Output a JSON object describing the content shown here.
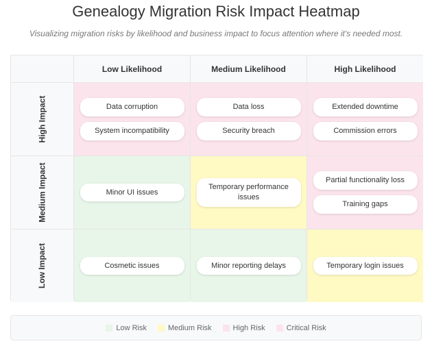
{
  "title": "Genealogy Migration Risk Impact Heatmap",
  "subtitle": "Visualizing migration risks by likelihood and business impact to focus attention where it's needed most.",
  "columns": [
    "Low Likelihood",
    "Medium Likelihood",
    "High Likelihood"
  ],
  "rows": [
    {
      "label": "High Impact",
      "cells": [
        {
          "level": "high",
          "items": [
            "Data corruption",
            "System incompatibility"
          ]
        },
        {
          "level": "high",
          "items": [
            "Data loss",
            "Security breach"
          ]
        },
        {
          "level": "high",
          "items": [
            "Extended downtime",
            "Commission errors"
          ]
        }
      ]
    },
    {
      "label": "Medium Impact",
      "cells": [
        {
          "level": "low",
          "items": [
            "Minor UI issues"
          ]
        },
        {
          "level": "medium",
          "items": [
            "Temporary performance issues"
          ]
        },
        {
          "level": "high",
          "items": [
            "Partial functionality loss",
            "Training gaps"
          ]
        }
      ]
    },
    {
      "label": "Low Impact",
      "cells": [
        {
          "level": "low",
          "items": [
            "Cosmetic issues"
          ]
        },
        {
          "level": "low",
          "items": [
            "Minor reporting delays"
          ]
        },
        {
          "level": "medium",
          "items": [
            "Temporary login issues"
          ]
        }
      ]
    }
  ],
  "legend": [
    {
      "label": "Low Risk",
      "color": "#e8f5e9"
    },
    {
      "label": "Medium Risk",
      "color": "#fff9c4"
    },
    {
      "label": "High Risk",
      "color": "#fce4ec"
    },
    {
      "label": "Critical Risk",
      "color": "#fce4ec"
    }
  ]
}
